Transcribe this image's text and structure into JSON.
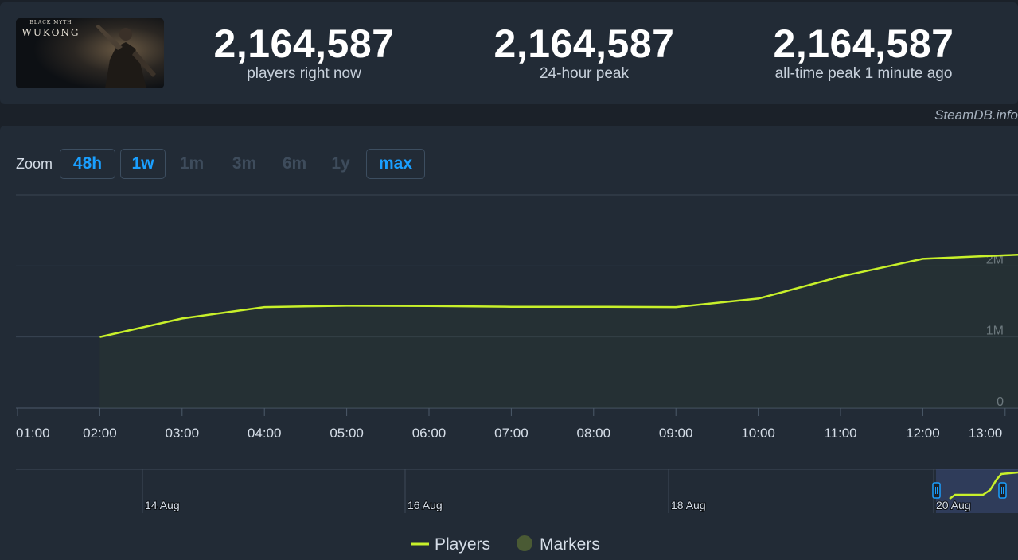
{
  "game": {
    "logo_small": "BLACK MYTH",
    "logo_big": "WUKONG"
  },
  "stats": [
    {
      "value": "2,164,587",
      "label": "players right now"
    },
    {
      "value": "2,164,587",
      "label": "24-hour peak"
    },
    {
      "value": "2,164,587",
      "label": "all-time peak 1 minute ago"
    }
  ],
  "brand": "SteamDB.info",
  "zoom": {
    "label": "Zoom",
    "options": [
      {
        "label": "48h",
        "active": true
      },
      {
        "label": "1w",
        "active": true
      },
      {
        "label": "1m",
        "active": false
      },
      {
        "label": "3m",
        "active": false
      },
      {
        "label": "6m",
        "active": false
      },
      {
        "label": "1y",
        "active": false
      },
      {
        "label": "max",
        "active": true
      }
    ]
  },
  "colors": {
    "line": "#c8f02a",
    "accent": "#1a9fff",
    "markers": "#4a5a34"
  },
  "chart_data": {
    "type": "line",
    "x": [
      "01:00",
      "02:00",
      "03:00",
      "04:00",
      "05:00",
      "06:00",
      "07:00",
      "08:00",
      "09:00",
      "10:00",
      "11:00",
      "12:00",
      "13:00"
    ],
    "x_ticks": [
      "01:00",
      "02:00",
      "03:00",
      "04:00",
      "05:00",
      "06:00",
      "07:00",
      "08:00",
      "09:00",
      "10:00",
      "11:00",
      "12:00",
      "13:00"
    ],
    "y_ticks": [
      "0",
      "1M",
      "2M"
    ],
    "ylim": [
      0,
      3000000
    ],
    "series": [
      {
        "name": "Players",
        "x": [
          "02:00",
          "03:00",
          "04:00",
          "05:00",
          "06:00",
          "07:00",
          "08:00",
          "09:00",
          "10:00",
          "11:00",
          "12:00",
          "13:00",
          "13:20"
        ],
        "values": [
          1000000,
          1260000,
          1420000,
          1440000,
          1435000,
          1425000,
          1425000,
          1420000,
          1540000,
          1850000,
          2100000,
          2150000,
          2164587
        ]
      }
    ],
    "legend": [
      "Players",
      "Markers"
    ],
    "legend_position": "bottom"
  },
  "navigator": {
    "labels": [
      "14 Aug",
      "16 Aug",
      "18 Aug",
      "20 Aug"
    ]
  }
}
